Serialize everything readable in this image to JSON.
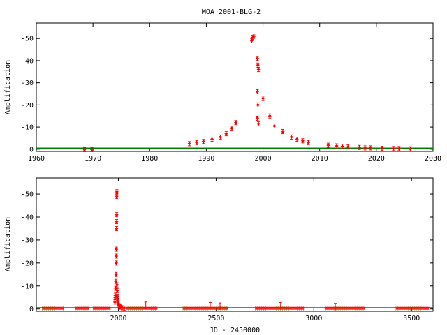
{
  "title": "MOA 2001-BLG-2",
  "colors": {
    "data": "#ff0000",
    "baseline": "#008000",
    "axis": "#000000"
  },
  "chart_data": [
    {
      "type": "scatter",
      "ylabel": "Amplification",
      "xlabel": "",
      "xlim": [
        1960,
        2030
      ],
      "ylim": [
        1,
        -57
      ],
      "xticks": [
        1960,
        1970,
        1980,
        1990,
        2000,
        2010,
        2020,
        2030
      ],
      "yticks": [
        0,
        -10,
        -20,
        -30,
        -40,
        -50
      ],
      "baseline": -0.5,
      "points": [
        [
          1968.5,
          0.2
        ],
        [
          1969.8,
          0.2
        ],
        [
          1987.0,
          -2.5
        ],
        [
          1988.3,
          -3.0
        ],
        [
          1989.5,
          -3.5
        ],
        [
          1991.0,
          -4.5
        ],
        [
          1992.5,
          -5.5
        ],
        [
          1993.5,
          -7.0
        ],
        [
          1994.5,
          -9.5
        ],
        [
          1995.2,
          -12.0
        ],
        [
          1998.0,
          -49.0
        ],
        [
          1998.2,
          -50.5
        ],
        [
          1998.4,
          -51.0
        ],
        [
          1999.0,
          -41.0
        ],
        [
          1999.1,
          -38.0
        ],
        [
          1999.2,
          -36.0
        ],
        [
          1999.0,
          -26.0
        ],
        [
          1999.1,
          -20.0
        ],
        [
          1999.0,
          -14.0
        ],
        [
          1999.2,
          -11.5
        ],
        [
          2000.0,
          -23.0
        ],
        [
          2001.2,
          -15.0
        ],
        [
          2002.0,
          -10.5
        ],
        [
          2003.5,
          -8.0
        ],
        [
          2005.0,
          -5.5
        ],
        [
          2006.0,
          -4.5
        ],
        [
          2007.0,
          -3.8
        ],
        [
          2008.0,
          -3.0
        ],
        [
          2011.5,
          -1.8
        ],
        [
          2013.0,
          -1.5
        ],
        [
          2014.0,
          -1.3
        ],
        [
          2015.0,
          -1.0
        ],
        [
          2017.0,
          -0.8
        ],
        [
          2018.0,
          -0.6
        ],
        [
          2019.0,
          -0.6
        ],
        [
          2021.0,
          -0.4
        ],
        [
          2023.0,
          -0.3
        ],
        [
          2024.0,
          -0.3
        ],
        [
          2026.0,
          -0.2
        ]
      ]
    },
    {
      "type": "scatter",
      "ylabel": "Amplification",
      "xlabel": "JD - 2450000",
      "xlim": [
        1580,
        3610
      ],
      "ylim": [
        1,
        -57
      ],
      "xticks": [
        2000,
        2500,
        3000,
        3500
      ],
      "yticks": [
        0,
        -10,
        -20,
        -30,
        -40,
        -50
      ],
      "baseline": -0.5,
      "peak_points": [
        [
          1982,
          -3.0
        ],
        [
          1983,
          -5.0
        ],
        [
          1984,
          -6.0
        ],
        [
          1986,
          -9.0
        ],
        [
          1987,
          -12.0
        ],
        [
          1988,
          -15.0
        ],
        [
          1989,
          -20.0
        ],
        [
          1989.5,
          -23.0
        ],
        [
          1990,
          -26.0
        ],
        [
          1990.5,
          -35.0
        ],
        [
          1991,
          -38.0
        ],
        [
          1991.3,
          -41.0
        ],
        [
          1991.6,
          -49.0
        ],
        [
          1992,
          -50.5
        ],
        [
          1992.3,
          -51.0
        ],
        [
          1993,
          -10.5
        ],
        [
          1994,
          -8.0
        ],
        [
          1995,
          -5.5
        ],
        [
          1996,
          -4.5
        ],
        [
          1997,
          -3.8
        ],
        [
          1998,
          -3.0
        ],
        [
          2000,
          -2.0
        ],
        [
          2003,
          -1.5
        ],
        [
          2007,
          -1.0
        ],
        [
          2012,
          -0.8
        ],
        [
          2020,
          -0.5
        ],
        [
          2030,
          -0.3
        ]
      ],
      "baseline_segments": [
        [
          1610,
          1720
        ],
        [
          1780,
          1850
        ],
        [
          1870,
          1960
        ],
        [
          2040,
          2200
        ],
        [
          2330,
          2560
        ],
        [
          2700,
          2950
        ],
        [
          3060,
          3260
        ],
        [
          3420,
          3590
        ]
      ],
      "errbar_points": [
        [
          2140,
          -1.2
        ],
        [
          2470,
          -1.0
        ],
        [
          2520,
          -0.8
        ],
        [
          2830,
          -1.0
        ],
        [
          3110,
          -0.6
        ]
      ]
    }
  ]
}
